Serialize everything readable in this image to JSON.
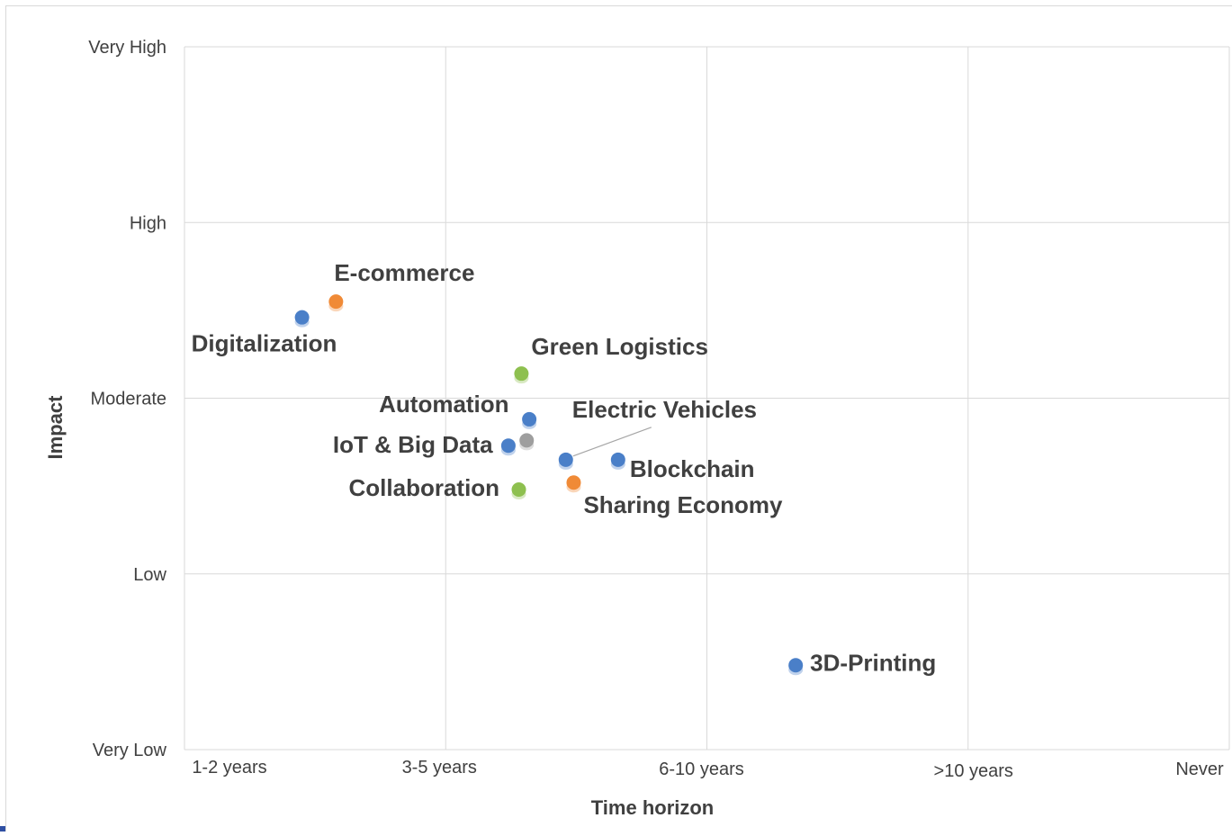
{
  "chart_data": {
    "type": "scatter",
    "title": "",
    "xlabel": "Time horizon",
    "ylabel": "Impact",
    "x_ticks": [
      "1-2 years",
      "3-5 years",
      "6-10 years",
      ">10 years",
      "Never"
    ],
    "y_ticks": [
      "Very Low",
      "Low",
      "Moderate",
      "High",
      "Very High"
    ],
    "xlim": [
      0,
      4
    ],
    "ylim": [
      0,
      4
    ],
    "grid": true,
    "colors": {
      "blue": "#4a7fc8",
      "orange": "#f08a36",
      "green": "#8ec04f",
      "gray": "#9e9e9e"
    },
    "points": [
      {
        "label": "Digitalization",
        "x": 0.45,
        "y": 2.46,
        "color": "blue"
      },
      {
        "label": "E-commerce",
        "x": 0.58,
        "y": 2.55,
        "color": "orange"
      },
      {
        "label": "Green Logistics",
        "x": 1.29,
        "y": 2.14,
        "color": "green"
      },
      {
        "label": "Automation",
        "x": 1.32,
        "y": 1.88,
        "color": "blue"
      },
      {
        "label": "Electric Vehicles",
        "x": 1.46,
        "y": 1.65,
        "color": "blue"
      },
      {
        "label": "IoT & Big Data",
        "x": 1.24,
        "y": 1.73,
        "color": "blue"
      },
      {
        "label": "",
        "x": 1.31,
        "y": 1.76,
        "color": "gray"
      },
      {
        "label": "Blockchain",
        "x": 1.66,
        "y": 1.65,
        "color": "blue"
      },
      {
        "label": "Collaboration",
        "x": 1.28,
        "y": 1.48,
        "color": "green"
      },
      {
        "label": "Sharing Economy",
        "x": 1.49,
        "y": 1.52,
        "color": "orange"
      },
      {
        "label": "3D-Printing",
        "x": 2.34,
        "y": 0.48,
        "color": "blue"
      }
    ]
  }
}
